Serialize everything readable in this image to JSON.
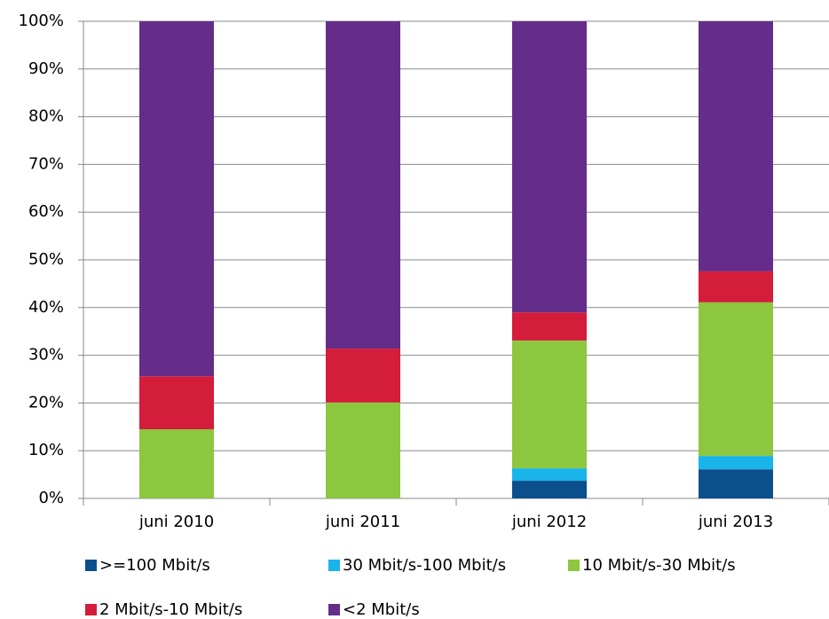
{
  "chart_data": {
    "type": "stacked_bar",
    "categories": [
      "juni 2010",
      "juni 2011",
      "juni 2012",
      "juni 2013"
    ],
    "series": [
      {
        "name": ">=100 Mbit/s",
        "color": "#0b4f8c",
        "values": [
          0,
          0,
          3.7,
          6.1
        ]
      },
      {
        "name": "30 Mbit/s-100 Mbit/s",
        "color": "#19b4ea",
        "values": [
          0,
          0,
          2.6,
          2.8
        ]
      },
      {
        "name": "10 Mbit/s-30 Mbit/s",
        "color": "#8dc63f",
        "values": [
          14.5,
          20.1,
          26.8,
          32.2
        ]
      },
      {
        "name": "2 Mbit/s-10 Mbit/s",
        "color": "#d41c3b",
        "values": [
          11.1,
          11.3,
          5.9,
          6.5
        ]
      },
      {
        "name": "<2 Mbit/s",
        "color": "#652d8a",
        "values": [
          74.4,
          68.6,
          61.0,
          52.4
        ]
      }
    ],
    "ylim": [
      0,
      100
    ],
    "yticks": [
      {
        "value": 0,
        "label": "0%"
      },
      {
        "value": 10,
        "label": "10%"
      },
      {
        "value": 20,
        "label": "20%"
      },
      {
        "value": 30,
        "label": "30%"
      },
      {
        "value": 40,
        "label": "40%"
      },
      {
        "value": 50,
        "label": "50%"
      },
      {
        "value": 60,
        "label": "60%"
      },
      {
        "value": 70,
        "label": "70%"
      },
      {
        "value": 80,
        "label": "80%"
      },
      {
        "value": 90,
        "label": "90%"
      },
      {
        "value": 100,
        "label": "100%"
      }
    ],
    "grid": true
  }
}
